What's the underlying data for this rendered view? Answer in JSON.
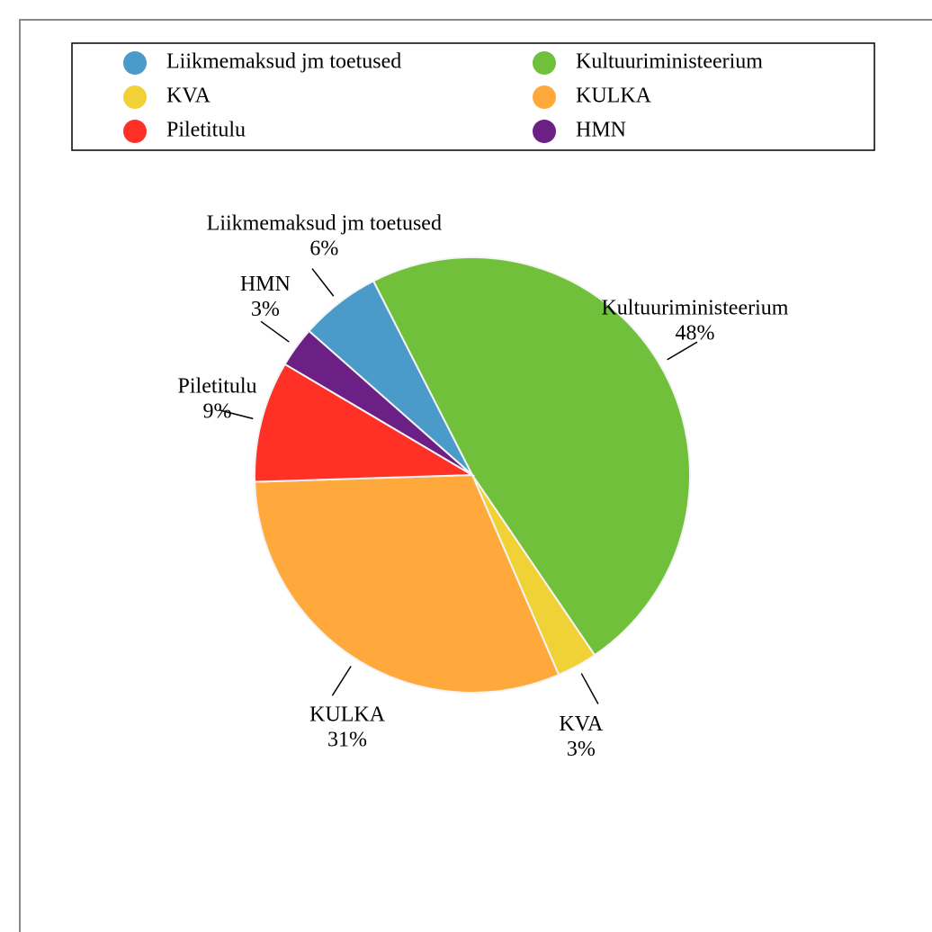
{
  "chart_data": {
    "type": "pie",
    "categories": [
      "Liikmemaksud jm toetused",
      "Kultuuriministeerium",
      "KVA",
      "KULKA",
      "Piletitulu",
      "HMN"
    ],
    "values": [
      6,
      48,
      3,
      31,
      9,
      3
    ],
    "value_labels": [
      "6%",
      "48%",
      "3%",
      "31%",
      "9%",
      "3%"
    ],
    "colors": [
      "#4a9bca",
      "#70c03c",
      "#f1d236",
      "#ffa93c",
      "#ff3127",
      "#6c1f84"
    ],
    "legend": "top"
  }
}
